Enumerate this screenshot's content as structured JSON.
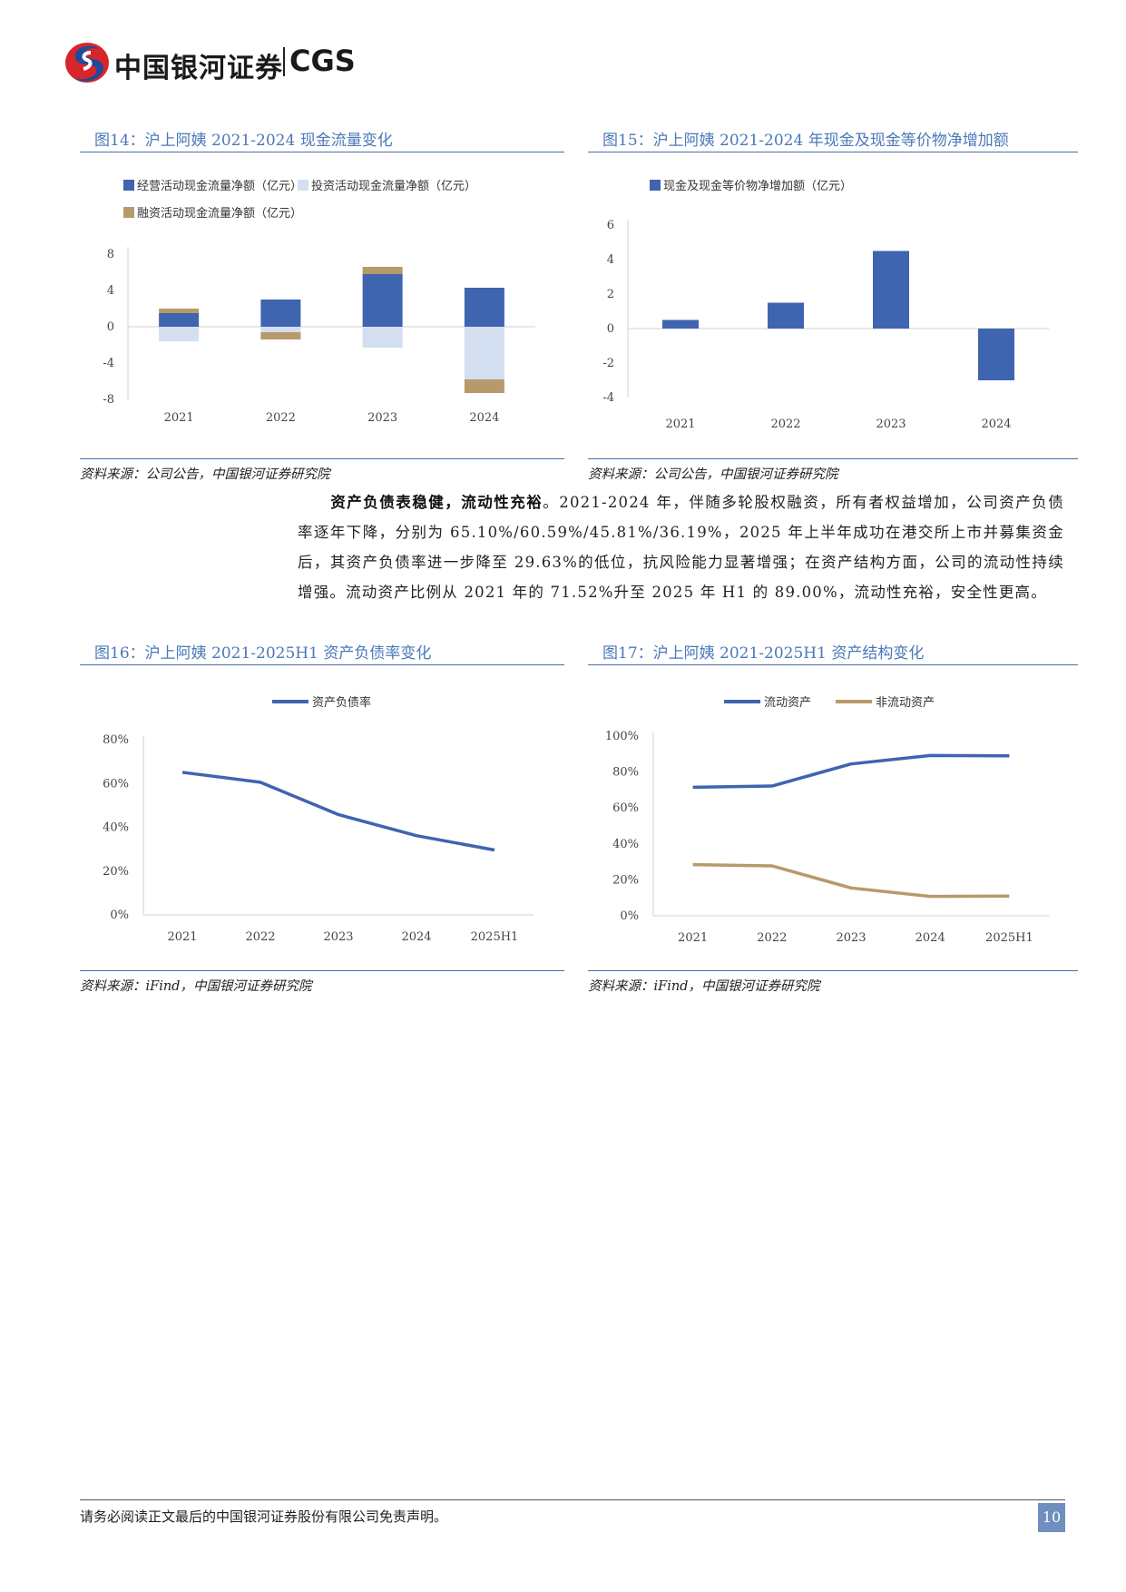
{
  "header": {
    "brand_cn": "中国银河证券",
    "brand_en": "CGS"
  },
  "fig14": {
    "title": "图14：沪上阿姨 2021-2024 现金流量变化",
    "source": "资料来源：公司公告，中国银河证券研究院",
    "chart_data": {
      "type": "bar",
      "stacked": true,
      "categories": [
        "2021",
        "2022",
        "2023",
        "2024"
      ],
      "series": [
        {
          "name": "经营活动现金流量净额（亿元）",
          "color": "#3f64b0",
          "values": [
            1.5,
            3.0,
            5.8,
            4.3
          ]
        },
        {
          "name": "投资活动现金流量净额（亿元）",
          "color": "#d3dff0",
          "values": [
            -1.6,
            -0.6,
            -2.3,
            -5.8
          ]
        },
        {
          "name": "融资活动现金流量净额（亿元）",
          "color": "#b8996b",
          "values": [
            0.5,
            -0.8,
            0.8,
            -1.5
          ]
        }
      ],
      "yticks": [
        "8",
        "4",
        "0",
        "-4",
        "-8"
      ],
      "ylim": [
        -8,
        8
      ]
    }
  },
  "fig15": {
    "title": "图15：沪上阿姨 2021-2024 年现金及现金等价物净增加额",
    "source": "资料来源：公司公告，中国银河证券研究院",
    "chart_data": {
      "type": "bar",
      "categories": [
        "2021",
        "2022",
        "2023",
        "2024"
      ],
      "series": [
        {
          "name": "现金及现金等价物净增加额（亿元）",
          "color": "#3f64b0",
          "values": [
            0.5,
            1.5,
            4.5,
            -3.0
          ]
        }
      ],
      "yticks": [
        "6",
        "4",
        "2",
        "0",
        "-2",
        "-4"
      ],
      "ylim": [
        -4,
        6
      ]
    }
  },
  "paragraph": {
    "lead": "资产负债表稳健，流动性充裕",
    "body": "。2021-2024 年，伴随多轮股权融资，所有者权益增加，公司资产负债率逐年下降，分别为 65.10%/60.59%/45.81%/36.19%，2025 年上半年成功在港交所上市并募集资金后，其资产负债率进一步降至 29.63%的低位，抗风险能力显著增强；在资产结构方面，公司的流动性持续增强。流动资产比例从 2021 年的 71.52%升至 2025 年 H1 的 89.00%，流动性充裕，安全性更高。"
  },
  "fig16": {
    "title": "图16：沪上阿姨 2021-2025H1 资产负债率变化",
    "source": "资料来源：iFind，中国银河证券研究院",
    "chart_data": {
      "type": "line",
      "categories": [
        "2021",
        "2022",
        "2023",
        "2024",
        "2025H1"
      ],
      "series": [
        {
          "name": "资产负债率",
          "color": "#3f64b0",
          "values": [
            65.1,
            60.59,
            45.81,
            36.19,
            29.63
          ]
        }
      ],
      "yticks": [
        "80%",
        "60%",
        "40%",
        "20%",
        "0%"
      ],
      "ylim": [
        0,
        80
      ]
    }
  },
  "fig17": {
    "title": "图17：沪上阿姨 2021-2025H1 资产结构变化",
    "source": "资料来源：iFind，中国银河证券研究院",
    "chart_data": {
      "type": "line",
      "categories": [
        "2021",
        "2022",
        "2023",
        "2024",
        "2025H1"
      ],
      "series": [
        {
          "name": "流动资产",
          "color": "#3f64b0",
          "values": [
            71.52,
            72.2,
            84.5,
            89.2,
            89.0
          ]
        },
        {
          "name": "非流动资产",
          "color": "#b8996b",
          "values": [
            28.48,
            27.8,
            15.5,
            10.8,
            11.0
          ]
        }
      ],
      "yticks": [
        "100%",
        "80%",
        "60%",
        "40%",
        "20%",
        "0%"
      ],
      "ylim": [
        0,
        100
      ]
    }
  },
  "footer": {
    "disclaimer": "请务必阅读正文最后的中国银河证券股份有限公司免责声明。",
    "page": "10"
  }
}
